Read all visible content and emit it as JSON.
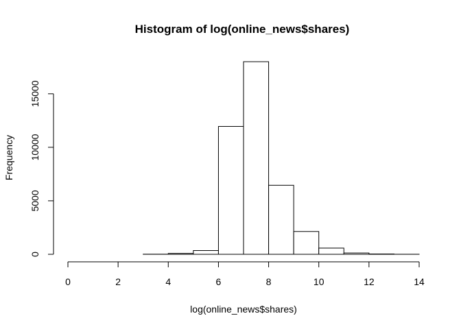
{
  "chart_data": {
    "type": "bar",
    "title": "Histogram of log(online_news$shares)",
    "xlabel": "log(online_news$shares)",
    "ylabel": "Frequency",
    "bins": [
      {
        "from": 0,
        "to": 1,
        "count": 0
      },
      {
        "from": 1,
        "to": 2,
        "count": 0
      },
      {
        "from": 2,
        "to": 3,
        "count": 0
      },
      {
        "from": 3,
        "to": 4,
        "count": 10
      },
      {
        "from": 4,
        "to": 5,
        "count": 80
      },
      {
        "from": 5,
        "to": 6,
        "count": 350
      },
      {
        "from": 6,
        "to": 7,
        "count": 11950
      },
      {
        "from": 7,
        "to": 8,
        "count": 18000
      },
      {
        "from": 8,
        "to": 9,
        "count": 6450
      },
      {
        "from": 9,
        "to": 10,
        "count": 2130
      },
      {
        "from": 10,
        "to": 11,
        "count": 580
      },
      {
        "from": 11,
        "to": 12,
        "count": 120
      },
      {
        "from": 12,
        "to": 13,
        "count": 30
      },
      {
        "from": 13,
        "to": 14,
        "count": 5
      }
    ],
    "xlim": [
      0,
      14
    ],
    "ylim": [
      0,
      18000
    ],
    "x_ticks": [
      0,
      2,
      4,
      6,
      8,
      10,
      12,
      14
    ],
    "y_ticks": [
      0,
      5000,
      10000,
      15000
    ]
  }
}
